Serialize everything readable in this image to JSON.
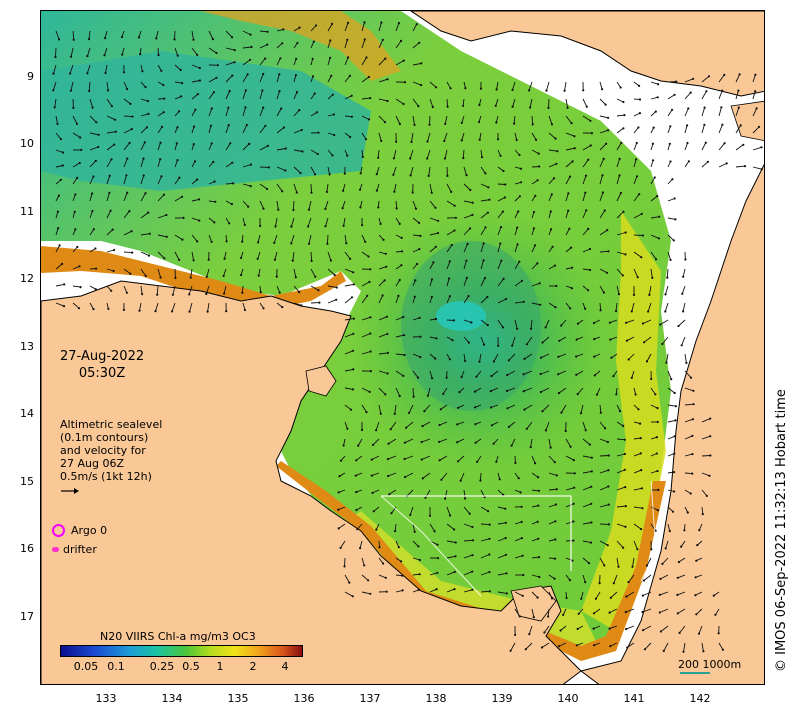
{
  "lat_ticks": [
    "9",
    "10",
    "11",
    "12",
    "13",
    "14",
    "15",
    "16",
    "17"
  ],
  "lon_ticks": [
    "133",
    "134",
    "135",
    "136",
    "137",
    "138",
    "139",
    "140",
    "141",
    "142"
  ],
  "date": {
    "line1": "27-Aug-2022",
    "line2": "05:30Z"
  },
  "altimetry": {
    "lines": [
      "Altimetric sealevel",
      "(0.1m contours)",
      "and velocity for",
      "27 Aug 06Z",
      "0.5m/s (1kt 12h)"
    ]
  },
  "legend": {
    "argo": "Argo 0",
    "drifter": "drifter"
  },
  "colorbar": {
    "title": "N20 VIIRS Chl-a mg/m3 OC3",
    "ticks": [
      "0.05",
      "0.1",
      "0.25",
      "0.5",
      "1",
      "2",
      "4"
    ]
  },
  "scale": {
    "label": "200  1000m"
  },
  "credit": "© IMOS 06-Sep-2022 11:32:13 Hobart time",
  "colors": {
    "land": "#f9c896",
    "argo": "#ff00ff",
    "drifter": "#ff33cc",
    "scale": "#2aa198"
  }
}
